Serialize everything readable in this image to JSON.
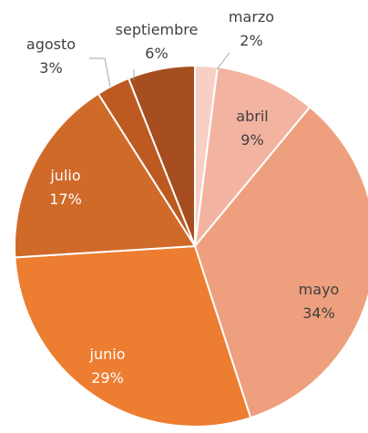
{
  "chart_data": {
    "type": "pie",
    "title": "",
    "categories": [
      "marzo",
      "abril",
      "mayo",
      "junio",
      "julio",
      "agosto",
      "septiembre"
    ],
    "values": [
      2,
      9,
      34,
      29,
      17,
      3,
      6
    ],
    "value_labels": [
      "2%",
      "9%",
      "34%",
      "29%",
      "17%",
      "3%",
      "6%"
    ],
    "colors": [
      "#f7cfc4",
      "#f2b4a0",
      "#ee9f7d",
      "#ed7d31",
      "#d06a29",
      "#bd5a21",
      "#a64e1f"
    ],
    "legend": "none",
    "data_labels": "category and percentage"
  }
}
